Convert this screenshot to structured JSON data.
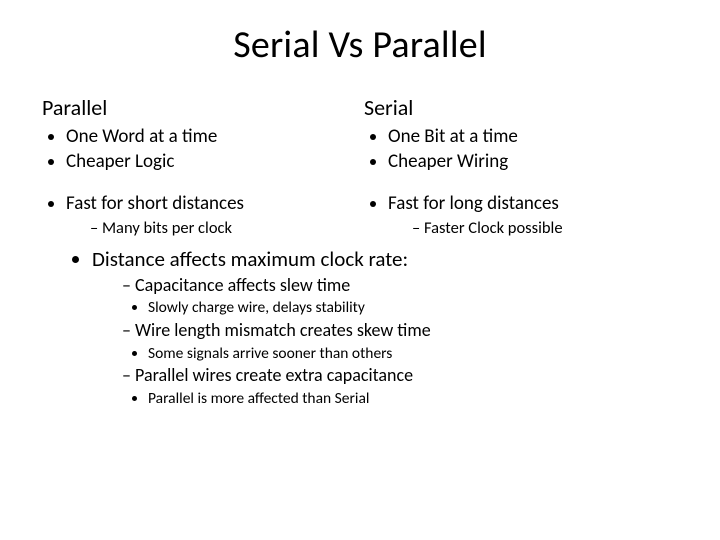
{
  "colors": {
    "background": "#ffffff",
    "text": "#000000"
  },
  "typography": {
    "font_family": "Calibri",
    "title_fontsize": 38,
    "heading_fontsize": 22,
    "l1_fontsize": 19,
    "l2_fontsize": 17,
    "l3_fontsize": 15
  },
  "title": "Serial Vs Parallel",
  "left": {
    "heading": "Parallel",
    "b1": "One Word at a time",
    "b2": "Cheaper Logic",
    "b3": "Fast for short distances",
    "b3a": "Many bits per clock"
  },
  "right": {
    "heading": "Serial",
    "b1": "One Bit at a time",
    "b2": "Cheaper Wiring",
    "b3": "Fast for long distances",
    "b3a": "Faster Clock possible"
  },
  "bottom": {
    "b1": "Distance affects maximum clock rate:",
    "b1a": "Capacitance affects slew time",
    "b1a_i": "Slowly charge wire, delays stability",
    "b1b": "Wire length mismatch creates skew time",
    "b1b_i": "Some signals arrive sooner than others",
    "b1c": "Parallel wires create extra capacitance",
    "b1c_i": "Parallel is more affected than Serial"
  }
}
